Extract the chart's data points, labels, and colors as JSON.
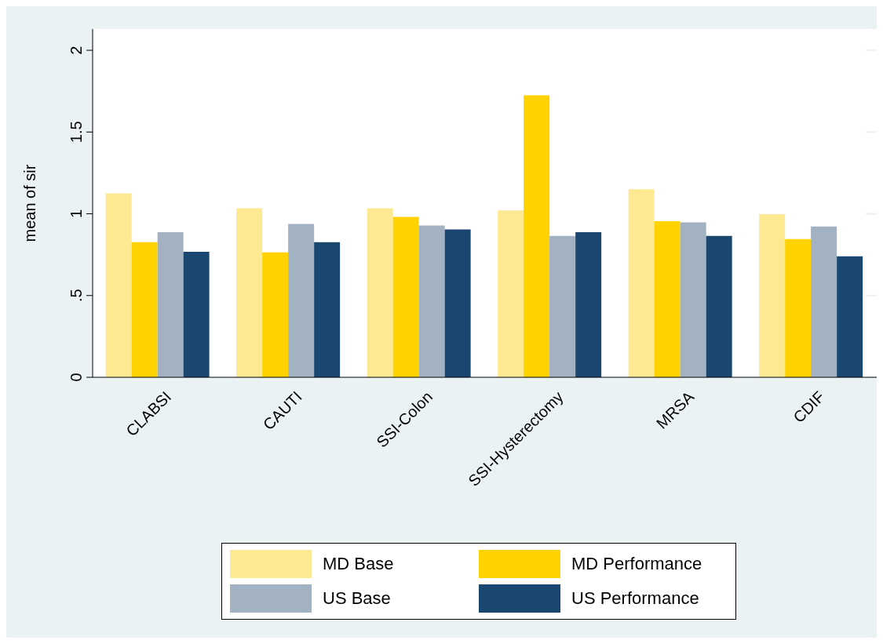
{
  "chart_data": {
    "type": "bar",
    "ylabel": "mean of sir",
    "categories": [
      "CLABSI",
      "CAUTI",
      "SSI-Colon",
      "SSI-Hysterectomy",
      "MRSA",
      "CDIF"
    ],
    "series": [
      {
        "name": "MD Base",
        "color": "#fde992",
        "values": [
          1.125,
          1.034,
          1.034,
          1.021,
          1.15,
          0.998
        ]
      },
      {
        "name": "MD Performance",
        "color": "#ffd200",
        "values": [
          0.826,
          0.764,
          0.981,
          1.725,
          0.955,
          0.845
        ]
      },
      {
        "name": "US Base",
        "color": "#a2b2c3",
        "values": [
          0.888,
          0.938,
          0.928,
          0.865,
          0.947,
          0.922
        ]
      },
      {
        "name": "US Performance",
        "color": "#1a476f",
        "values": [
          0.768,
          0.826,
          0.904,
          0.888,
          0.865,
          0.74
        ]
      }
    ],
    "ylim": [
      0,
      2.13
    ],
    "yticks": [
      0,
      {
        "value": 0.5,
        "label": ".5"
      },
      1,
      1.5,
      2
    ],
    "grid": "y",
    "legend": "bottom"
  }
}
